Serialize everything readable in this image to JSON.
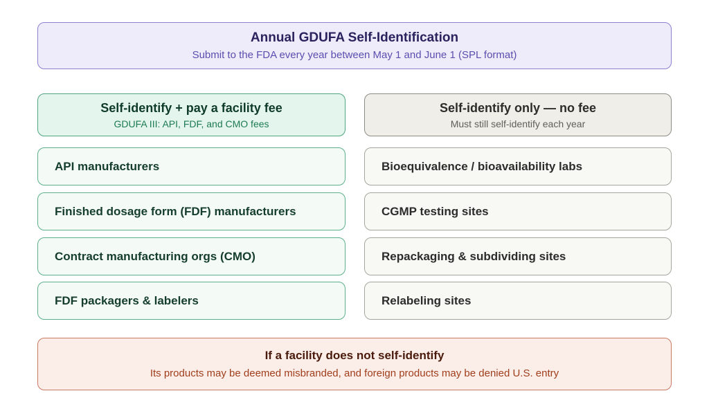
{
  "header": {
    "title": "Annual GDUFA Self-Identification",
    "subtitle": "Submit to the FDA every year between May 1 and June 1 (SPL format)"
  },
  "fee_column": {
    "title": "Self-identify + pay a facility fee",
    "subtitle": "GDUFA III: API, FDF, and CMO fees",
    "items": [
      "API manufacturers",
      "Finished dosage form (FDF) manufacturers",
      "Contract manufacturing orgs (CMO)",
      "FDF packagers & labelers"
    ]
  },
  "no_fee_column": {
    "title": "Self-identify only — no fee",
    "subtitle": "Must still self-identify each year",
    "items": [
      "Bioequivalence / bioavailability labs",
      "CGMP testing sites",
      "Repackaging & subdividing sites",
      "Relabeling sites"
    ]
  },
  "consequence": {
    "title": "If a facility does not self-identify",
    "subtitle": "Its products may be deemed misbranded, and foreign products may be denied U.S. entry"
  }
}
